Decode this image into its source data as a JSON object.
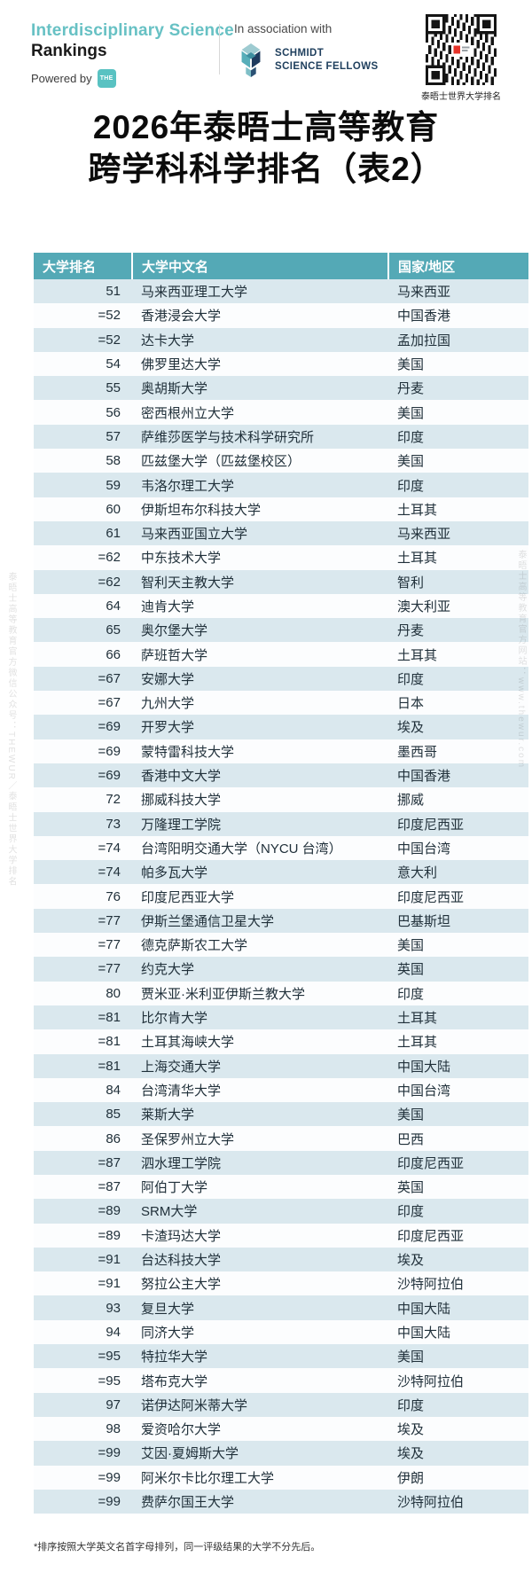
{
  "header": {
    "brand_line1": "Interdisciplinary Science",
    "brand_line2": "Rankings",
    "powered_by": "Powered by",
    "the_badge": "THE",
    "association_label": "In association with",
    "partner_line1": "SCHMIDT",
    "partner_line2": "SCIENCE FELLOWS",
    "qr_caption": "泰晤士世界大学排名"
  },
  "title": {
    "line1": "2026年泰晤士高等教育",
    "line2": "跨学科科学排名（表2）"
  },
  "chart_data": {
    "type": "table",
    "title": "2026年泰晤士高等教育跨学科科学排名（表2）",
    "columns": [
      "大学排名",
      "大学中文名",
      "国家/地区"
    ],
    "rows": [
      [
        "51",
        "马来西亚理工大学",
        "马来西亚"
      ],
      [
        "=52",
        "香港浸会大学",
        "中国香港"
      ],
      [
        "=52",
        "达卡大学",
        "孟加拉国"
      ],
      [
        "54",
        "佛罗里达大学",
        "美国"
      ],
      [
        "55",
        "奥胡斯大学",
        "丹麦"
      ],
      [
        "56",
        "密西根州立大学",
        "美国"
      ],
      [
        "57",
        "萨维莎医学与技术科学研究所",
        "印度"
      ],
      [
        "58",
        "匹兹堡大学（匹兹堡校区）",
        "美国"
      ],
      [
        "59",
        "韦洛尔理工大学",
        "印度"
      ],
      [
        "60",
        "伊斯坦布尔科技大学",
        "土耳其"
      ],
      [
        "61",
        "马来西亚国立大学",
        "马来西亚"
      ],
      [
        "=62",
        "中东技术大学",
        "土耳其"
      ],
      [
        "=62",
        "智利天主教大学",
        "智利"
      ],
      [
        "64",
        "迪肯大学",
        "澳大利亚"
      ],
      [
        "65",
        "奥尔堡大学",
        "丹麦"
      ],
      [
        "66",
        "萨班哲大学",
        "土耳其"
      ],
      [
        "=67",
        "安娜大学",
        "印度"
      ],
      [
        "=67",
        "九州大学",
        "日本"
      ],
      [
        "=69",
        "开罗大学",
        "埃及"
      ],
      [
        "=69",
        "蒙特雷科技大学",
        "墨西哥"
      ],
      [
        "=69",
        "香港中文大学",
        "中国香港"
      ],
      [
        "72",
        "挪威科技大学",
        "挪威"
      ],
      [
        "73",
        "万隆理工学院",
        "印度尼西亚"
      ],
      [
        "=74",
        "台湾阳明交通大学（NYCU 台湾）",
        "中国台湾"
      ],
      [
        "=74",
        "帕多瓦大学",
        "意大利"
      ],
      [
        "76",
        "印度尼西亚大学",
        "印度尼西亚"
      ],
      [
        "=77",
        "伊斯兰堡通信卫星大学",
        "巴基斯坦"
      ],
      [
        "=77",
        "德克萨斯农工大学",
        "美国"
      ],
      [
        "=77",
        "约克大学",
        "英国"
      ],
      [
        "80",
        "贾米亚·米利亚伊斯兰教大学",
        "印度"
      ],
      [
        "=81",
        "比尔肯大学",
        "土耳其"
      ],
      [
        "=81",
        "土耳其海峡大学",
        "土耳其"
      ],
      [
        "=81",
        "上海交通大学",
        "中国大陆"
      ],
      [
        "84",
        "台湾清华大学",
        "中国台湾"
      ],
      [
        "85",
        "莱斯大学",
        "美国"
      ],
      [
        "86",
        "圣保罗州立大学",
        "巴西"
      ],
      [
        "=87",
        "泗水理工学院",
        "印度尼西亚"
      ],
      [
        "=87",
        "阿伯丁大学",
        "英国"
      ],
      [
        "=89",
        "SRM大学",
        "印度"
      ],
      [
        "=89",
        "卡渣玛达大学",
        "印度尼西亚"
      ],
      [
        "=91",
        "台达科技大学",
        "埃及"
      ],
      [
        "=91",
        "努拉公主大学",
        "沙特阿拉伯"
      ],
      [
        "93",
        "复旦大学",
        "中国大陆"
      ],
      [
        "94",
        "同济大学",
        "中国大陆"
      ],
      [
        "=95",
        "特拉华大学",
        "美国"
      ],
      [
        "=95",
        "塔布克大学",
        "沙特阿拉伯"
      ],
      [
        "97",
        "诺伊达阿米蒂大学",
        "印度"
      ],
      [
        "98",
        "爱资哈尔大学",
        "埃及"
      ],
      [
        "=99",
        "艾因·夏姆斯大学",
        "埃及"
      ],
      [
        "=99",
        "阿米尔卡比尔理工大学",
        "伊朗"
      ],
      [
        "=99",
        "费萨尔国王大学",
        "沙特阿拉伯"
      ]
    ]
  },
  "footnote": "*排序按照大学英文名首字母排列，同一评级结果的大学不分先后。",
  "watermarks": {
    "left": "泰晤士高等教育官方微信公众号：THEWUR／泰晤士世界大学排名",
    "right": "泰晤士高等教育官方网站：www.thewur.com"
  },
  "colors": {
    "header_teal": "#54A9B6",
    "row_alt_blue": "#DAE8EE",
    "brand_teal": "#67C1C4",
    "the_badge_teal": "#59C2C2",
    "partner_navy": "#20405E",
    "qr_logo_red": "#E63329"
  }
}
